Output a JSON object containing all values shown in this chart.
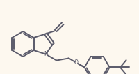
{
  "bg_color": "#fdf8ef",
  "line_color": "#5a5a6a",
  "lw": 1.4,
  "figsize": [
    2.01,
    1.06
  ],
  "dpi": 100
}
